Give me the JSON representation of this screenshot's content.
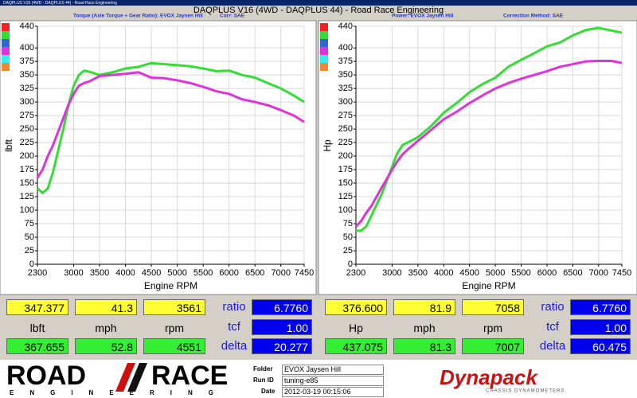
{
  "window_title": "DAQPLUS V16 (4WD - DAQPLUS 44) - Road Race Engineering",
  "title": "DAQPLUS V16 (4WD - DAQPLUS 44) - Road Race Engineering",
  "chart_data": [
    {
      "type": "line",
      "subtitle": "Torque (Axle Torque + Gear Ratio): EVOX Jaysen Hill",
      "note": "Corr: SAE",
      "xlabel": "Engine RPM",
      "ylabel": "lbft",
      "x": [
        2300,
        2400,
        2500,
        2600,
        2700,
        2800,
        2900,
        3000,
        3100,
        3200,
        3300,
        3500,
        3750,
        4000,
        4250,
        4500,
        4750,
        5000,
        5250,
        5500,
        5750,
        6000,
        6250,
        6500,
        6750,
        7000,
        7250,
        7450
      ],
      "series": [
        {
          "color": "#33dd33",
          "values": [
            140,
            132,
            140,
            170,
            210,
            250,
            295,
            330,
            350,
            358,
            356,
            350,
            355,
            362,
            365,
            372,
            370,
            368,
            366,
            362,
            357,
            358,
            350,
            345,
            335,
            325,
            312,
            300
          ]
        },
        {
          "color": "#dd33dd",
          "values": [
            160,
            175,
            200,
            220,
            245,
            270,
            295,
            315,
            330,
            335,
            338,
            348,
            350,
            352,
            355,
            345,
            344,
            340,
            335,
            328,
            320,
            315,
            305,
            300,
            294,
            285,
            275,
            263
          ]
        }
      ],
      "xlim": [
        2300,
        7450
      ],
      "ylim": [
        0,
        440
      ],
      "xticks": [
        2300,
        3000,
        3500,
        4000,
        4500,
        5000,
        5500,
        6000,
        6500,
        7000,
        7450
      ],
      "yticks": [
        0,
        25,
        50,
        75,
        100,
        125,
        150,
        175,
        200,
        225,
        250,
        275,
        300,
        325,
        350,
        375,
        400,
        440
      ],
      "grid": true
    },
    {
      "type": "line",
      "subtitle": "Power: EVOX Jaysen Hill",
      "note": "Correction Method: SAE",
      "xlabel": "Engine RPM",
      "ylabel": "Hp",
      "x": [
        2300,
        2400,
        2500,
        2600,
        2700,
        2800,
        2900,
        3000,
        3100,
        3200,
        3300,
        3500,
        3750,
        4000,
        4250,
        4500,
        4750,
        5000,
        5250,
        5500,
        5750,
        6000,
        6250,
        6500,
        6750,
        7000,
        7250,
        7450
      ],
      "series": [
        {
          "color": "#33dd33",
          "values": [
            62,
            62,
            70,
            90,
            110,
            130,
            155,
            180,
            205,
            220,
            225,
            235,
            255,
            280,
            298,
            318,
            333,
            345,
            365,
            378,
            390,
            403,
            410,
            423,
            433,
            437,
            432,
            428
          ]
        },
        {
          "color": "#dd33dd",
          "values": [
            70,
            80,
            95,
            108,
            125,
            142,
            158,
            175,
            190,
            203,
            212,
            228,
            248,
            268,
            282,
            298,
            312,
            325,
            335,
            343,
            350,
            357,
            365,
            370,
            375,
            376,
            376,
            372
          ]
        }
      ],
      "xlim": [
        2300,
        7450
      ],
      "ylim": [
        0,
        440
      ],
      "xticks": [
        2300,
        3000,
        3500,
        4000,
        4500,
        5000,
        5500,
        6000,
        6500,
        7000,
        7450
      ],
      "yticks": [
        0,
        25,
        50,
        75,
        100,
        125,
        150,
        175,
        200,
        225,
        250,
        275,
        300,
        325,
        350,
        375,
        400,
        440
      ],
      "grid": true
    }
  ],
  "readouts": [
    {
      "top": [
        "347.377",
        "41.3",
        "3561"
      ],
      "units": [
        "lbft",
        "mph",
        "rpm"
      ],
      "bottom": [
        "367.655",
        "52.8",
        "4551"
      ],
      "params": [
        {
          "label": "ratio",
          "value": "6.7760"
        },
        {
          "label": "tcf",
          "value": "1.00"
        },
        {
          "label": "delta",
          "value": "20.277"
        }
      ]
    },
    {
      "top": [
        "376.600",
        "81.9",
        "7058"
      ],
      "units": [
        "Hp",
        "mph",
        "rpm"
      ],
      "bottom": [
        "437.075",
        "81.3",
        "7007"
      ],
      "params": [
        {
          "label": "ratio",
          "value": "6.7760"
        },
        {
          "label": "tcf",
          "value": "1.00"
        },
        {
          "label": "delta",
          "value": "60.475"
        }
      ]
    }
  ],
  "run_info": [
    {
      "label": "Folder",
      "value": "EVOX Jaysen Hill"
    },
    {
      "label": "Run ID",
      "value": "tuning-e85"
    },
    {
      "label": "Date",
      "value": "2012-03-19 00:15:06"
    }
  ],
  "logo": {
    "left": "ROAD",
    "right": "RACE",
    "tagline": "ENGINEERING",
    "brand": "Dynapack",
    "brand_tagline": "CHASSIS DYNAMOMETERS"
  }
}
